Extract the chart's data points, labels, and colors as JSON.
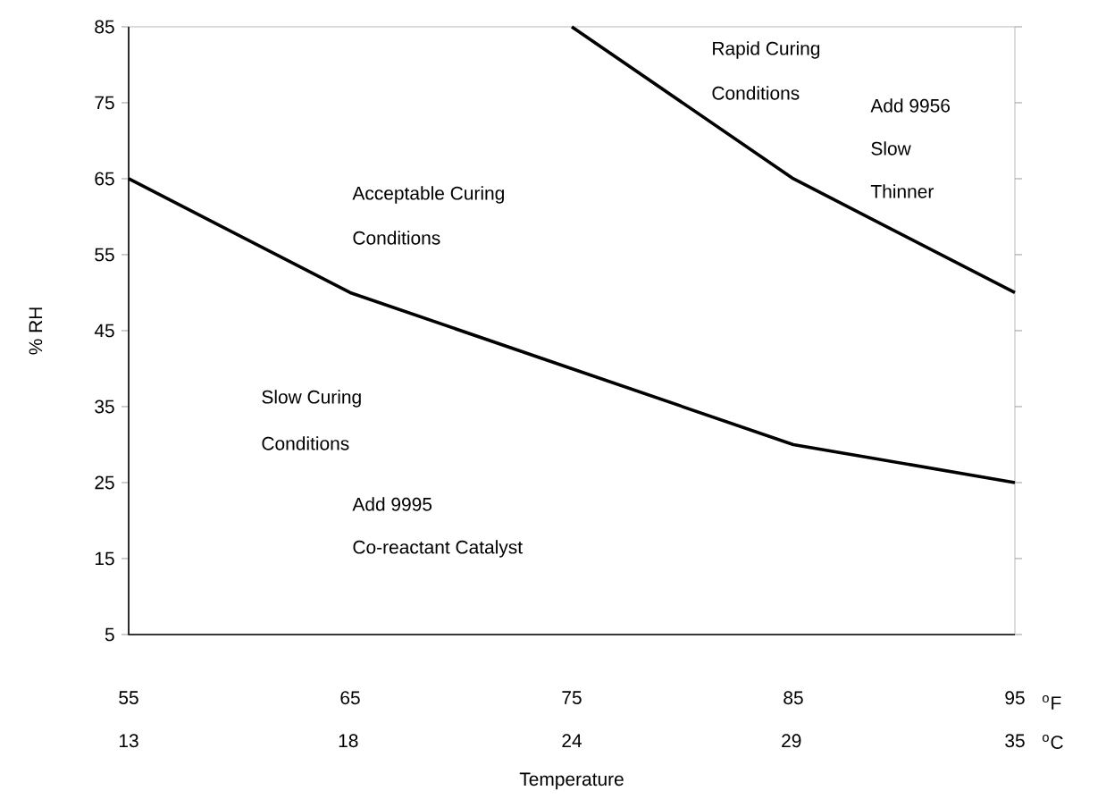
{
  "chart_data": {
    "type": "line",
    "xlabel": "Temperature",
    "ylabel": "% RH",
    "series": [
      {
        "color": "#000000",
        "x": [
          55,
          65,
          75,
          85,
          95
        ],
        "values": [
          65,
          50,
          40,
          30,
          25
        ]
      },
      {
        "color": "#000000",
        "x": [
          75,
          85,
          95
        ],
        "values": [
          85,
          65,
          50
        ]
      }
    ],
    "xlim": [
      55,
      95
    ],
    "xticks": [
      55,
      65,
      75,
      85,
      95
    ],
    "x2lim": [
      12.8,
      35
    ],
    "x2ticks": [
      {
        "value": 12.8,
        "label": "13"
      },
      {
        "value": 18.3,
        "label": "18"
      },
      {
        "value": 23.9,
        "label": "24"
      },
      {
        "value": 29.4,
        "label": "29"
      },
      35
    ],
    "ylim": [
      5,
      85
    ],
    "yticks": [
      5,
      15,
      25,
      35,
      45,
      55,
      65,
      75,
      85
    ],
    "grid": false,
    "marker": "none",
    "line_style": "solid",
    "annotations": [
      "$^{o}$F",
      "$^{o}$C",
      "Rapid Curing",
      "Conditions",
      "Add 9956",
      "Slow",
      "Thinner",
      "Acceptable Curing",
      "Conditions",
      "Slow  Curing",
      "Conditions",
      "Add 9995",
      "Co-reactant Catalyst"
    ]
  }
}
